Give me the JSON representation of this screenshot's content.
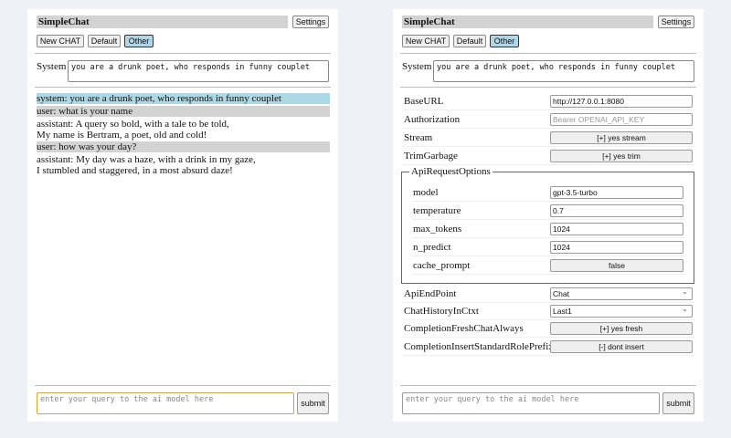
{
  "title": "SimpleChat",
  "settings_label": "Settings",
  "chat_buttons": [
    "New CHAT",
    "Default",
    "Other"
  ],
  "system_label": "System",
  "system_prompt": "you are a drunk poet, who responds in funny couplet",
  "messages": [
    {
      "role": "system",
      "line1": "system: you are a drunk poet, who responds in funny couplet",
      "line2": ""
    },
    {
      "role": "user",
      "line1": "user: what is your name",
      "line2": ""
    },
    {
      "role": "assistant",
      "line1": "assistant: A query so bold, with a tale to be told,",
      "line2": "My name is Bertram, a poet, old and cold!"
    },
    {
      "role": "user",
      "line1": "user: how was your day?",
      "line2": ""
    },
    {
      "role": "assistant",
      "line1": "assistant: My day was a haze, with a drink in my gaze,",
      "line2": "I stumbled and staggered, in a most absurd daze!"
    }
  ],
  "query_placeholder": "enter your query to the ai model here",
  "submit_label": "submit",
  "settings": {
    "base_url": {
      "label": "BaseURL",
      "value": "http://127.0.0.1:8080"
    },
    "authorization": {
      "label": "Authorization",
      "placeholder": "Bearer OPENAI_API_KEY"
    },
    "stream": {
      "label": "Stream",
      "value": "[+] yes stream"
    },
    "trim": {
      "label": "TrimGarbage",
      "value": "[+] yes trim"
    },
    "api_options": {
      "legend": "ApiRequestOptions",
      "model": {
        "label": "model",
        "value": "gpt-3.5-turbo"
      },
      "temperature": {
        "label": "temperature",
        "value": "0.7"
      },
      "max_tokens": {
        "label": "max_tokens",
        "value": "1024"
      },
      "n_predict": {
        "label": "n_predict",
        "value": "1024"
      },
      "cache_prompt": {
        "label": "cache_prompt",
        "value": "false"
      }
    },
    "api_endpoint": {
      "label": "ApiEndPoint",
      "value": "Chat"
    },
    "chat_history": {
      "label": "ChatHistoryInCtxt",
      "value": "Last1"
    },
    "fresh_chat": {
      "label": "CompletionFreshChatAlways",
      "value": "[+] yes fresh"
    },
    "role_prefix": {
      "label": "CompletionInsertStandardRolePrefix",
      "value": "[-] dont insert"
    }
  }
}
